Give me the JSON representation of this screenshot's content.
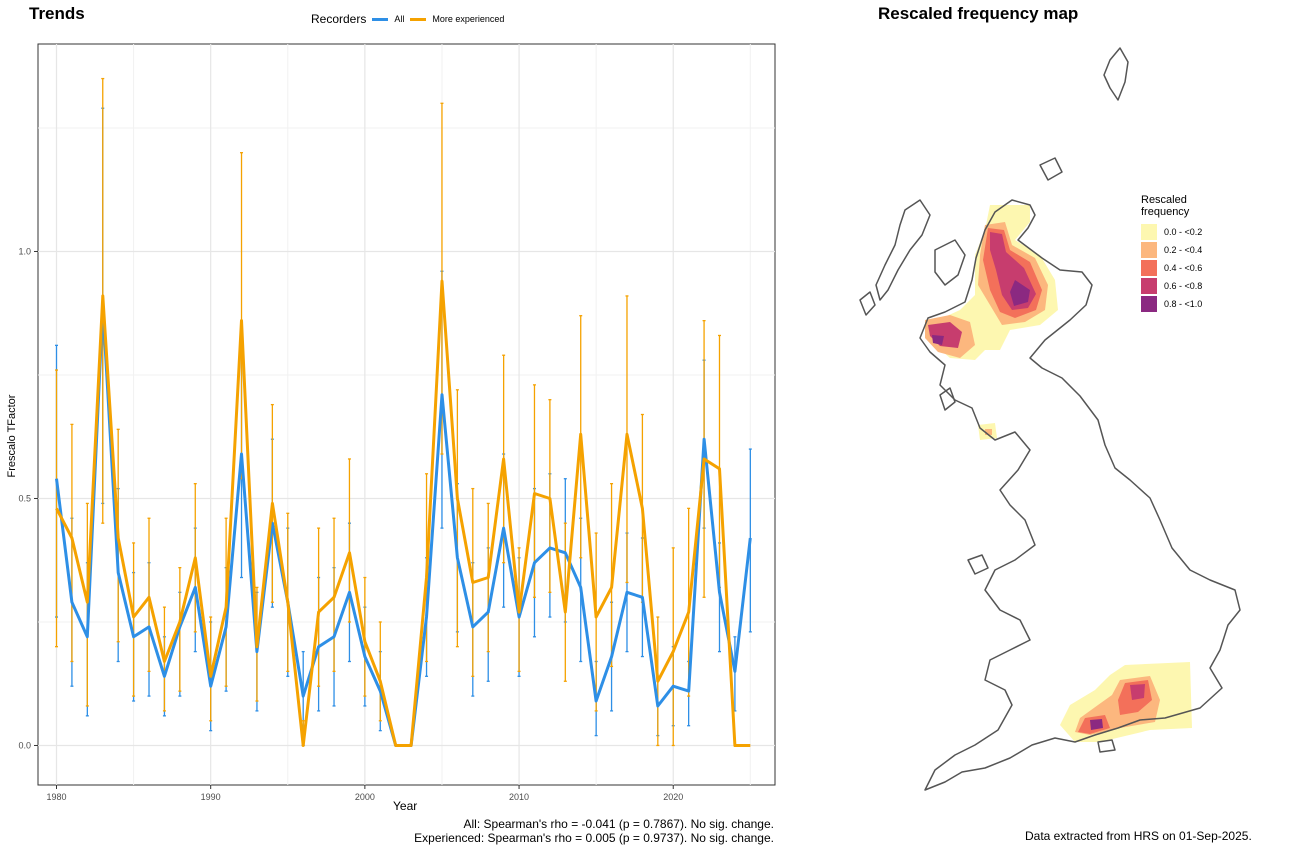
{
  "trends_title": "Trends",
  "map_title": "Rescaled frequency map",
  "legend": {
    "title": "Recorders",
    "items": [
      {
        "label": "All",
        "color": "#2E8FE6"
      },
      {
        "label": "More experienced",
        "color": "#F5A200"
      }
    ]
  },
  "stats": {
    "all": "All: Spearman's rho = -0.041 (p = 0.7867). No sig. change.",
    "experienced": "Experienced: Spearman's rho = 0.005 (p = 0.9737). No sig. change."
  },
  "data_note": "Data extracted from HRS on 01-Sep-2025.",
  "map_legend": {
    "title_line1": "Rescaled",
    "title_line2": "frequency",
    "classes": [
      {
        "label": "0.0 - <0.2",
        "color": "#FDF7B0"
      },
      {
        "label": "0.2 - <0.4",
        "color": "#FCB77E"
      },
      {
        "label": "0.4 - <0.6",
        "color": "#F3705A"
      },
      {
        "label": "0.6 - <0.8",
        "color": "#C73D6E"
      },
      {
        "label": "0.8 - <1.0",
        "color": "#8B2981"
      }
    ]
  },
  "chart_data": {
    "type": "line",
    "xlabel": "Year",
    "ylabel": "Frescalo TFactor",
    "xlim": [
      1978.8,
      2026.6
    ],
    "ylim": [
      -0.08,
      1.42
    ],
    "xticks": [
      1980,
      1990,
      2000,
      2010,
      2020
    ],
    "yticks": [
      0.0,
      0.5,
      1.0
    ],
    "ytick_labels": [
      "0.0",
      "0.5",
      "1.0"
    ],
    "grid": true,
    "legend_position": "top",
    "series": [
      {
        "name": "All",
        "color": "#2E8FE6",
        "x": [
          1980,
          1981,
          1982,
          1983,
          1984,
          1985,
          1986,
          1987,
          1988,
          1989,
          1990,
          1991,
          1992,
          1993,
          1994,
          1995,
          1996,
          1997,
          1998,
          1999,
          2000,
          2001,
          2002,
          2003,
          2004,
          2005,
          2006,
          2007,
          2008,
          2009,
          2010,
          2011,
          2012,
          2013,
          2014,
          2015,
          2016,
          2017,
          2018,
          2019,
          2020,
          2021,
          2022,
          2023,
          2024,
          2025
        ],
        "y": [
          0.54,
          0.29,
          0.22,
          0.89,
          0.35,
          0.22,
          0.24,
          0.14,
          0.24,
          0.32,
          0.12,
          0.24,
          0.59,
          0.19,
          0.45,
          0.29,
          0.1,
          0.2,
          0.22,
          0.31,
          0.18,
          0.11,
          0.0,
          0.0,
          0.26,
          0.71,
          0.38,
          0.24,
          0.27,
          0.44,
          0.26,
          0.37,
          0.4,
          0.39,
          0.32,
          0.09,
          0.18,
          0.31,
          0.3,
          0.08,
          0.12,
          0.11,
          0.62,
          0.31,
          0.15,
          0.42
        ],
        "lower": [
          0.26,
          0.12,
          0.06,
          0.49,
          0.17,
          0.09,
          0.1,
          0.06,
          0.1,
          0.19,
          0.03,
          0.11,
          0.34,
          0.07,
          0.28,
          0.14,
          0.0,
          0.07,
          0.08,
          0.17,
          0.08,
          0.03,
          0.0,
          0.0,
          0.14,
          0.44,
          0.23,
          0.1,
          0.13,
          0.28,
          0.14,
          0.22,
          0.26,
          0.25,
          0.17,
          0.02,
          0.07,
          0.19,
          0.18,
          0.02,
          0.04,
          0.04,
          0.44,
          0.19,
          0.07,
          0.23
        ],
        "upper": [
          0.81,
          0.46,
          0.37,
          1.29,
          0.52,
          0.35,
          0.37,
          0.22,
          0.31,
          0.44,
          0.25,
          0.36,
          0.83,
          0.31,
          0.62,
          0.44,
          0.19,
          0.34,
          0.36,
          0.45,
          0.28,
          0.19,
          0.0,
          0.0,
          0.38,
          0.96,
          0.53,
          0.37,
          0.4,
          0.59,
          0.38,
          0.52,
          0.55,
          0.54,
          0.46,
          0.17,
          0.29,
          0.43,
          0.42,
          0.14,
          0.2,
          0.17,
          0.78,
          0.41,
          0.22,
          0.6
        ]
      },
      {
        "name": "More experienced",
        "color": "#F5A200",
        "x": [
          1980,
          1981,
          1982,
          1983,
          1984,
          1985,
          1986,
          1987,
          1988,
          1989,
          1990,
          1991,
          1992,
          1993,
          1994,
          1995,
          1996,
          1997,
          1998,
          1999,
          2000,
          2001,
          2002,
          2003,
          2004,
          2005,
          2006,
          2007,
          2008,
          2009,
          2010,
          2011,
          2012,
          2013,
          2014,
          2015,
          2016,
          2017,
          2018,
          2019,
          2020,
          2021,
          2022,
          2023,
          2024,
          2025
        ],
        "y": [
          0.48,
          0.42,
          0.29,
          0.91,
          0.42,
          0.26,
          0.3,
          0.17,
          0.25,
          0.38,
          0.14,
          0.28,
          0.86,
          0.2,
          0.49,
          0.29,
          0.0,
          0.27,
          0.3,
          0.39,
          0.21,
          0.13,
          0.0,
          0.0,
          0.34,
          0.94,
          0.5,
          0.33,
          0.34,
          0.58,
          0.27,
          0.51,
          0.5,
          0.27,
          0.63,
          0.26,
          0.32,
          0.63,
          0.48,
          0.13,
          0.19,
          0.27,
          0.58,
          0.56,
          0.0,
          0.0
        ],
        "lower": [
          0.2,
          0.17,
          0.08,
          0.45,
          0.21,
          0.1,
          0.15,
          0.07,
          0.11,
          0.23,
          0.05,
          0.12,
          0.54,
          0.09,
          0.29,
          0.15,
          0.0,
          0.12,
          0.15,
          0.25,
          0.1,
          0.05,
          0.0,
          0.0,
          0.17,
          0.59,
          0.2,
          0.14,
          0.19,
          0.37,
          0.15,
          0.3,
          0.31,
          0.13,
          0.38,
          0.07,
          0.16,
          0.33,
          0.29,
          0.0,
          0.0,
          0.1,
          0.3,
          0.32,
          0.0,
          0.0
        ],
        "upper": [
          0.76,
          0.65,
          0.49,
          1.35,
          0.64,
          0.41,
          0.46,
          0.28,
          0.36,
          0.53,
          0.26,
          0.46,
          1.2,
          0.32,
          0.69,
          0.47,
          0.05,
          0.44,
          0.46,
          0.58,
          0.34,
          0.25,
          0.0,
          0.0,
          0.55,
          1.3,
          0.72,
          0.52,
          0.49,
          0.79,
          0.4,
          0.73,
          0.7,
          0.45,
          0.87,
          0.43,
          0.53,
          0.91,
          0.67,
          0.26,
          0.4,
          0.48,
          0.86,
          0.83,
          0.0,
          0.0
        ]
      }
    ]
  }
}
